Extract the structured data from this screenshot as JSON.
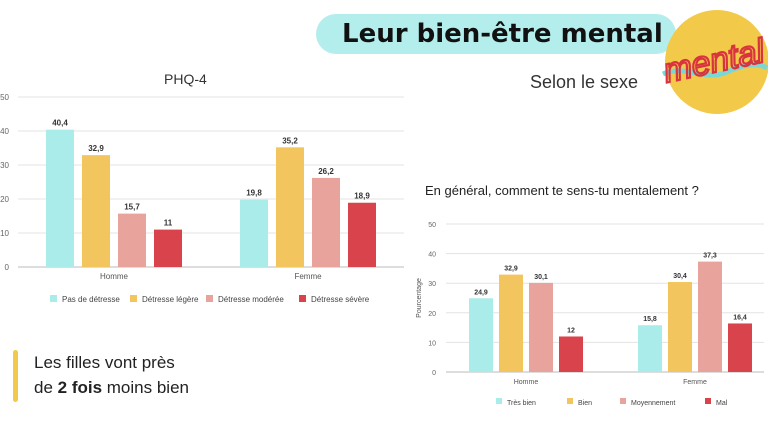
{
  "header": {
    "title": "Leur bien-être mental",
    "subtitle": "Selon le sexe"
  },
  "logo": {
    "text": "mental"
  },
  "colors": {
    "tres_bien": "#a9ecea",
    "bien": "#f3c55e",
    "moyen": "#e8a49c",
    "mal": "#d9444c",
    "pill": "#b3eeec"
  },
  "callout": {
    "line1": "Les filles vont près",
    "line2_prefix": "de ",
    "line2_bold": "2 fois",
    "line2_suffix": " moins bien"
  },
  "chart_data": [
    {
      "type": "bar",
      "title": "PHQ-4",
      "categories": [
        "Homme",
        "Femme"
      ],
      "ylim": [
        0,
        50
      ],
      "yticks": [
        "0",
        "10",
        "20",
        "30",
        "40",
        "50"
      ],
      "grid": true,
      "legend": "bottom",
      "series": [
        {
          "name": "Pas de détresse",
          "color": "#a9ecea",
          "values": [
            40.4,
            19.8
          ],
          "labels": [
            "40,4",
            "19,8"
          ]
        },
        {
          "name": "Détresse légère",
          "color": "#f3c55e",
          "values": [
            32.9,
            35.2
          ],
          "labels": [
            "32,9",
            "35,2"
          ]
        },
        {
          "name": "Détresse modérée",
          "color": "#e8a49c",
          "values": [
            15.7,
            26.2
          ],
          "labels": [
            "15,7",
            "26,2"
          ]
        },
        {
          "name": "Détresse sévère",
          "color": "#d9444c",
          "values": [
            11,
            18.9
          ],
          "labels": [
            "11",
            "18,9"
          ]
        }
      ]
    },
    {
      "type": "bar",
      "title": "En général, comment te sens-tu mentalement ?",
      "ylabel": "Pourcentage",
      "categories": [
        "Homme",
        "Femme"
      ],
      "ylim": [
        0,
        50
      ],
      "yticks": [
        "0",
        "10",
        "20",
        "30",
        "40",
        "50"
      ],
      "grid": true,
      "legend": "bottom",
      "series": [
        {
          "name": "Très bien",
          "color": "#a9ecea",
          "values": [
            24.9,
            15.8
          ],
          "labels": [
            "24,9",
            "15,8"
          ]
        },
        {
          "name": "Bien",
          "color": "#f3c55e",
          "values": [
            32.9,
            30.4
          ],
          "labels": [
            "32,9",
            "30,4"
          ]
        },
        {
          "name": "Moyennement",
          "color": "#e8a49c",
          "values": [
            30.1,
            37.3
          ],
          "labels": [
            "30,1",
            "37,3"
          ]
        },
        {
          "name": "Mal",
          "color": "#d9444c",
          "values": [
            12,
            16.4
          ],
          "labels": [
            "12",
            "16,4"
          ]
        }
      ]
    }
  ]
}
